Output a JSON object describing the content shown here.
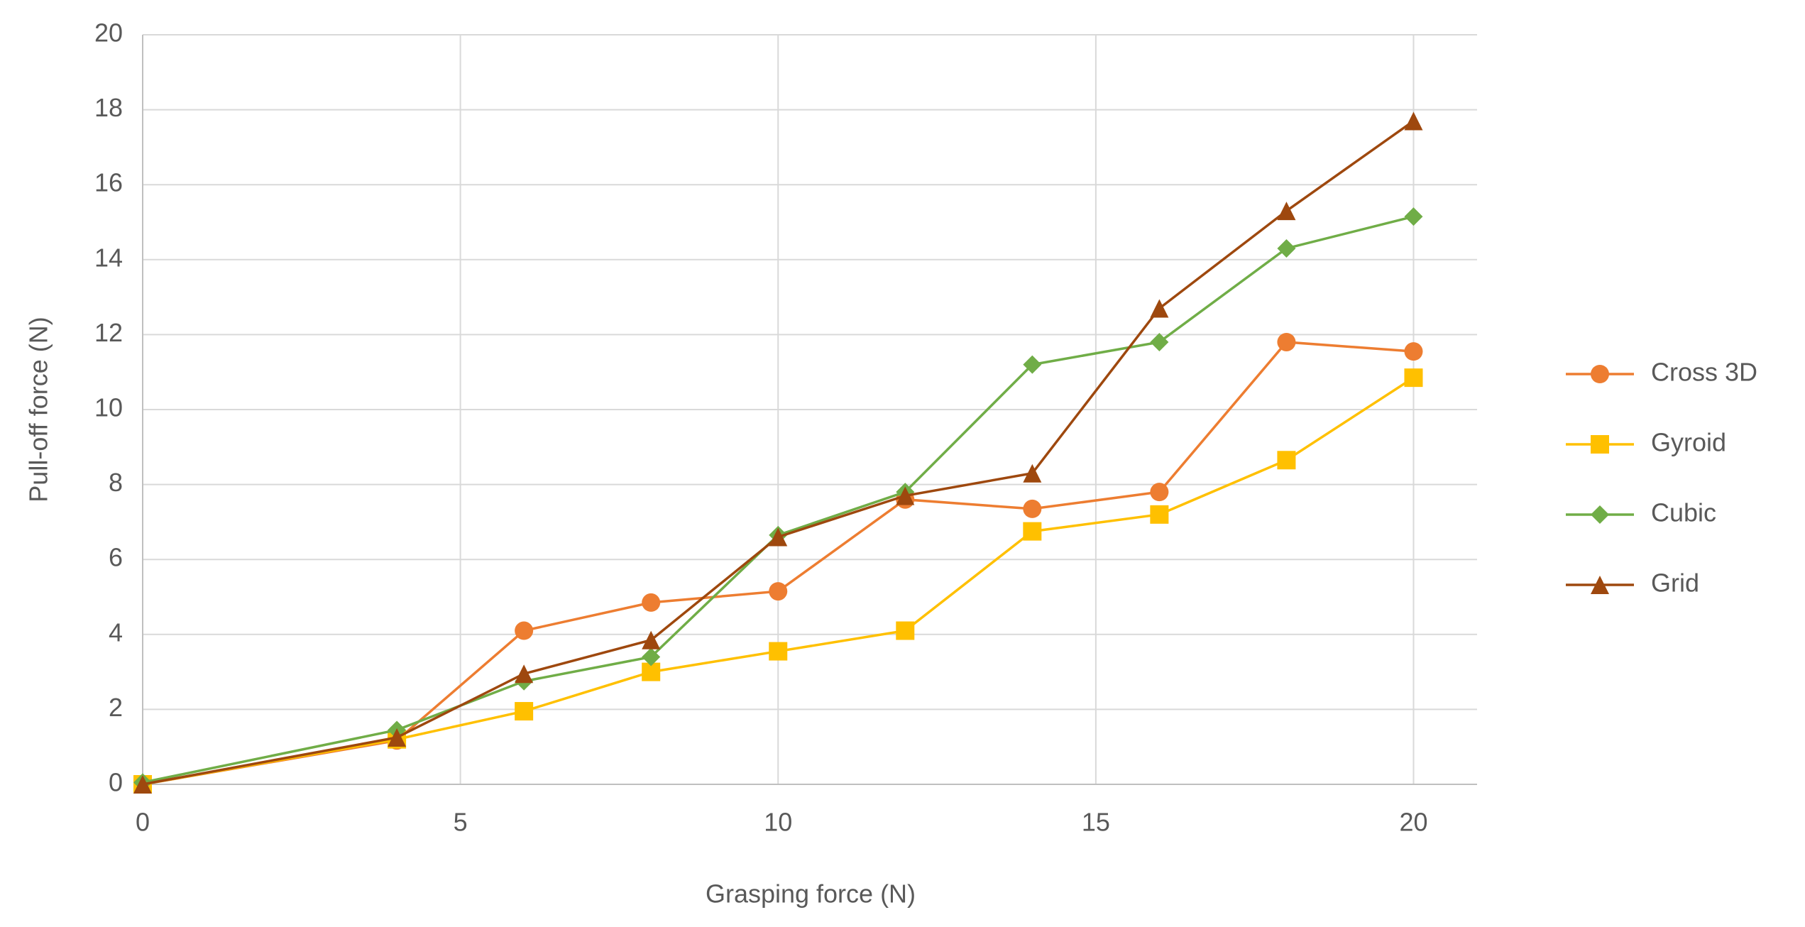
{
  "chart_data": {
    "type": "line",
    "x_label": "Grasping force (N)",
    "y_label": "Pull-off force (N)",
    "x": [
      0,
      4,
      6,
      8,
      10,
      12,
      14,
      16,
      18,
      20
    ],
    "series": [
      {
        "name": "Cross 3D",
        "color": "#ed7d31",
        "marker": "circle",
        "values": [
          0,
          1.17,
          4.1,
          4.85,
          5.15,
          7.6,
          7.35,
          7.8,
          11.8,
          11.55
        ]
      },
      {
        "name": "Gyroid",
        "color": "#ffc000",
        "marker": "square",
        "values": [
          0,
          1.2,
          1.95,
          3.0,
          3.55,
          4.1,
          6.75,
          7.2,
          8.65,
          10.85
        ]
      },
      {
        "name": "Cubic",
        "color": "#70ad47",
        "marker": "diamond",
        "values": [
          0.05,
          1.45,
          2.75,
          3.4,
          6.65,
          7.8,
          11.2,
          11.8,
          14.3,
          15.15
        ]
      },
      {
        "name": "Grid",
        "color": "#9e480e",
        "marker": "triangle",
        "values": [
          0,
          1.25,
          2.95,
          3.85,
          6.6,
          7.7,
          8.3,
          12.7,
          15.3,
          17.7
        ]
      }
    ],
    "xlim": [
      0,
      21
    ],
    "xticks": [
      0,
      5,
      10,
      15,
      20
    ],
    "ylim": [
      0,
      20
    ],
    "yticks": [
      0,
      2,
      4,
      6,
      8,
      10,
      12,
      14,
      16,
      18,
      20
    ],
    "grid": true,
    "legend": "right"
  }
}
